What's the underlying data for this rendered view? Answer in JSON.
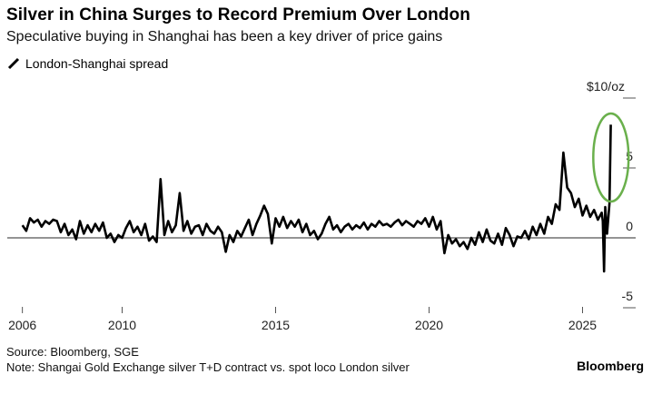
{
  "header": {
    "title": "Silver in China Surges to Record Premium Over London",
    "subtitle": "Speculative buying in Shanghai has been a key driver of price gains"
  },
  "footer": {
    "source": "Source: Bloomberg, SGE",
    "note": "Note: Shangai Gold Exchange silver T+D contract vs. spot loco London silver",
    "brand": "Bloomberg"
  },
  "chart_data": {
    "type": "line",
    "title": "Silver in China Surges to Record Premium Over London",
    "xlabel": "",
    "ylabel": "$10/oz",
    "unit_label": "$10/oz",
    "xlim": [
      2006.75,
      2026.3
    ],
    "ylim": [
      -5,
      10
    ],
    "x_ticks": [
      {
        "value": 2006.75,
        "label": "2006"
      },
      {
        "value": 2010,
        "label": "2010"
      },
      {
        "value": 2015,
        "label": "2015"
      },
      {
        "value": 2020,
        "label": "2020"
      },
      {
        "value": 2025,
        "label": "2025"
      }
    ],
    "y_ticks": [
      {
        "value": 10,
        "label": "$10/oz"
      },
      {
        "value": 5,
        "label": "5"
      },
      {
        "value": 0,
        "label": "0"
      },
      {
        "value": -5,
        "label": "-5"
      }
    ],
    "grid": false,
    "legend_position": "top-left",
    "line_color": "#000000",
    "highlight_color": "#6ab04c",
    "zero_line_color": "#555555",
    "annotation": {
      "type": "ellipse",
      "around": "latest spike",
      "x_range": [
        2025.35,
        2026.5
      ],
      "y_range": [
        2.6,
        8.9
      ]
    },
    "series": [
      {
        "name": "London-Shanghai spread",
        "start": 2006.75,
        "step": 0.125,
        "values": [
          0.9,
          0.5,
          1.4,
          1.1,
          1.3,
          0.8,
          1.2,
          1.0,
          1.3,
          1.2,
          0.4,
          1.0,
          0.2,
          0.6,
          -0.1,
          1.2,
          0.3,
          0.9,
          0.4,
          1.0,
          0.5,
          1.1,
          0.0,
          0.3,
          -0.3,
          0.2,
          0.0,
          0.7,
          1.2,
          0.4,
          0.8,
          0.2,
          1.0,
          -0.2,
          0.1,
          -0.3,
          4.2,
          0.2,
          1.2,
          0.4,
          0.9,
          3.2,
          0.5,
          1.2,
          0.3,
          0.8,
          0.9,
          0.2,
          1.0,
          0.5,
          0.3,
          0.8,
          0.4,
          -1.0,
          0.2,
          -0.3,
          0.5,
          0.1,
          0.7,
          1.3,
          0.2,
          1.0,
          1.6,
          2.3,
          1.7,
          -0.4,
          1.4,
          0.8,
          1.5,
          0.7,
          1.2,
          0.8,
          1.3,
          0.4,
          1.0,
          0.2,
          0.5,
          -0.1,
          0.3,
          1.0,
          1.5,
          0.6,
          0.9,
          0.4,
          0.8,
          1.0,
          0.6,
          0.9,
          0.7,
          1.1,
          0.6,
          1.0,
          0.8,
          1.2,
          0.9,
          1.0,
          0.8,
          1.1,
          1.3,
          0.9,
          1.2,
          1.0,
          0.8,
          1.2,
          1.0,
          1.4,
          0.8,
          1.5,
          0.6,
          1.2,
          -1.1,
          0.2,
          -0.4,
          -0.1,
          -0.6,
          -0.3,
          -0.8,
          0.0,
          -0.5,
          0.4,
          -0.3,
          0.6,
          -0.2,
          -0.4,
          0.3,
          -0.5,
          0.7,
          0.2,
          -0.6,
          0.1,
          0.0,
          0.5,
          -0.1,
          0.8,
          0.2,
          1.0,
          0.3,
          1.5,
          1.0,
          2.4,
          2.0,
          6.1,
          3.6,
          3.2,
          2.2,
          2.8,
          1.6,
          2.3,
          1.5,
          2.0,
          1.3,
          1.8
        ],
        "tail": [
          [
            2025.66,
            1.2
          ],
          [
            2025.7,
            -2.4
          ],
          [
            2025.74,
            2.2
          ],
          [
            2025.8,
            0.3
          ],
          [
            2025.88,
            2.5
          ],
          [
            2025.92,
            8.1
          ]
        ]
      }
    ]
  }
}
